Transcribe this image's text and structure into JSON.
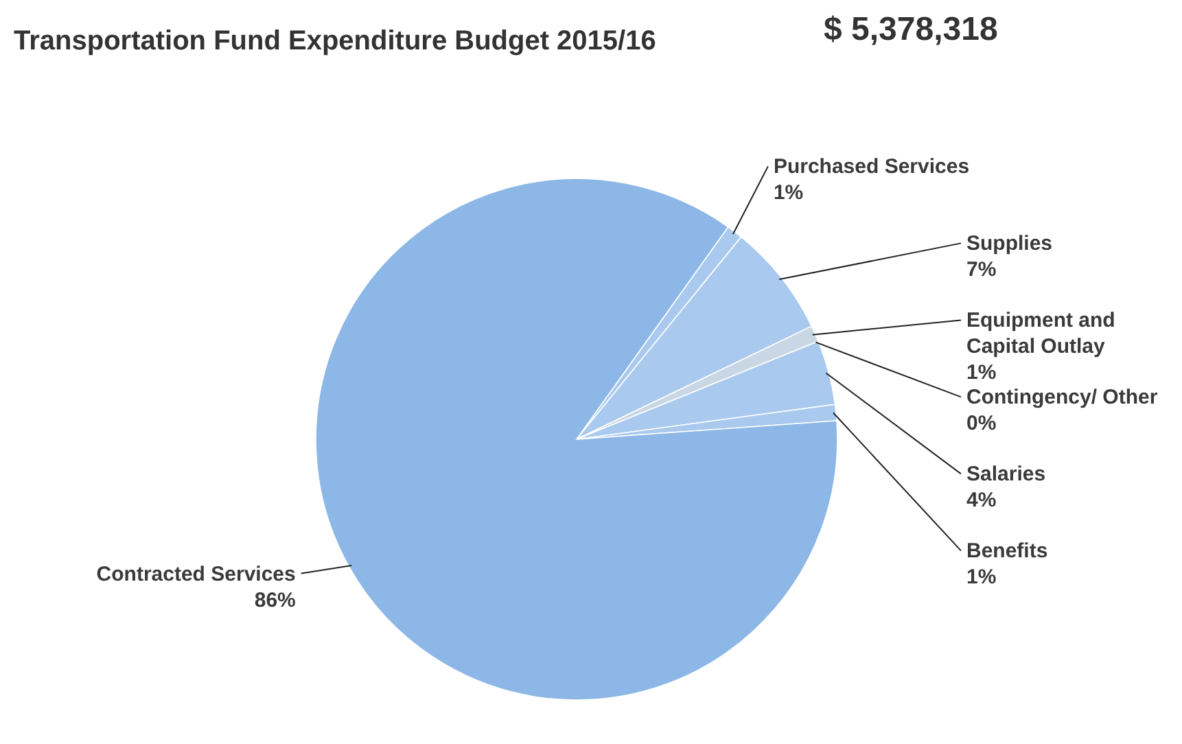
{
  "chart_data": {
    "type": "pie",
    "title": "Transportation Fund Expenditure Budget 2015/16",
    "annotations": [
      "$ 5,378,318"
    ],
    "categories": [
      "Purchased Services",
      "Supplies",
      "Equipment and Capital Outlay",
      "Contingency/ Other",
      "Salaries",
      "Benefits",
      "Contracted Services"
    ],
    "values": [
      1,
      7,
      1,
      0,
      4,
      1,
      86
    ],
    "value_labels": [
      "1%",
      "7%",
      "1%",
      "0%",
      "4%",
      "1%",
      "86%"
    ],
    "colors": [
      "#a9c9ee",
      "#a9c9ee",
      "#c9d6e3",
      "#a9c9ee",
      "#a9c9ee",
      "#a9c9ee",
      "#8db7e6"
    ],
    "legend": false
  }
}
